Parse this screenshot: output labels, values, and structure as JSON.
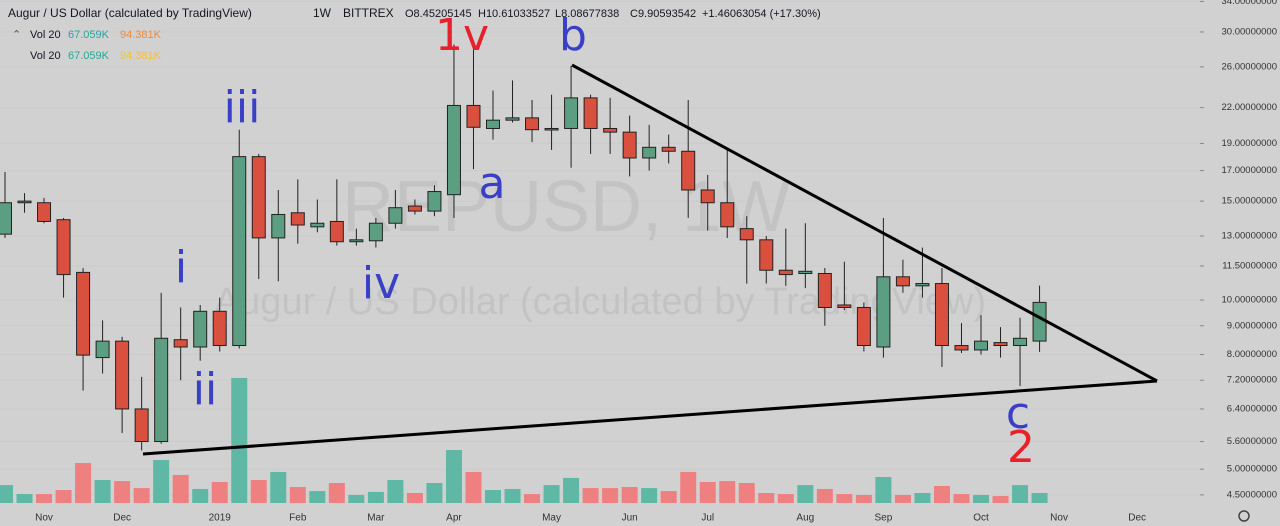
{
  "chart_data": {
    "type": "candlestick",
    "title": "Augur / US Dollar (calculated by TradingView)",
    "interval": "1W",
    "exchange": "BITTREX",
    "ohlc_labels": [
      "O8.45205145",
      "H10.61033527",
      "L8.08677838",
      "C9.90593542"
    ],
    "change": "+1.46063054 (+17.30%)",
    "watermark": "REPUSD, 1W",
    "volume_legend": [
      {
        "label": "Vol 20",
        "values": [
          "67.059K",
          "94.381K"
        ]
      },
      {
        "label": "Vol 20",
        "values": [
          "67.059K",
          "94.381K"
        ]
      }
    ],
    "annotations": [
      "1v",
      "a",
      "b",
      "iii",
      "i",
      "ii",
      "iv",
      "c",
      "2"
    ],
    "log_scale": true,
    "grid": true,
    "up_color": "#5b9e82",
    "down_color": "#d9503f",
    "volume_up_color": "#5fb8a5",
    "volume_down_color": "#ef8080",
    "categories": [
      null,
      null,
      "Nov",
      null,
      null,
      null,
      "Dec",
      null,
      null,
      null,
      null,
      "2019",
      null,
      null,
      null,
      "Feb",
      null,
      null,
      null,
      "Mar",
      null,
      null,
      null,
      "Apr",
      null,
      null,
      null,
      null,
      "May",
      null,
      null,
      null,
      "Jun",
      null,
      null,
      null,
      "Jul",
      null,
      null,
      null,
      null,
      "Aug",
      null,
      null,
      null,
      "Sep",
      null,
      null,
      null,
      null,
      "Oct",
      null,
      null,
      null,
      "Nov",
      null,
      null,
      null,
      "Dec",
      null,
      null
    ],
    "open": [
      13.1,
      14.9,
      14.9,
      13.9,
      11.2,
      7.9,
      8.45,
      6.4,
      5.6,
      8.5,
      8.25,
      9.55,
      8.3,
      18.0,
      12.9,
      14.3,
      13.5,
      13.8,
      12.7,
      12.75,
      13.7,
      14.7,
      14.4,
      15.4,
      22.2,
      20.2,
      20.9,
      21.1,
      20.1,
      20.2,
      22.9,
      20.2,
      19.9,
      17.9,
      18.7,
      18.4,
      15.7,
      14.9,
      13.4,
      12.8,
      11.3,
      11.15,
      11.15,
      9.8,
      9.7,
      8.25,
      11.0,
      10.6,
      10.7,
      8.3,
      8.15,
      8.4,
      8.3,
      8.45205145,
      null,
      null,
      null,
      null,
      null,
      null,
      null
    ],
    "high": [
      16.9,
      15.5,
      15.2,
      14.0,
      11.4,
      9.2,
      8.6,
      7.3,
      10.3,
      9.7,
      9.8,
      10.1,
      20.1,
      18.2,
      15.7,
      16.4,
      15.1,
      16.4,
      13.4,
      14.0,
      15.7,
      15.1,
      16.0,
      28.5,
      29.0,
      23.6,
      24.6,
      22.7,
      23.2,
      26.1,
      23.2,
      22.9,
      21.3,
      20.5,
      19.7,
      22.7,
      16.7,
      18.5,
      14.1,
      13.0,
      13.4,
      13.7,
      11.4,
      11.7,
      9.9,
      14.0,
      11.8,
      12.4,
      11.4,
      9.1,
      9.4,
      8.95,
      9.3,
      10.61033527,
      null,
      null,
      null,
      null,
      null,
      null,
      null
    ],
    "low": [
      12.9,
      14.3,
      13.7,
      10.1,
      6.9,
      7.4,
      5.8,
      5.4,
      5.55,
      7.2,
      7.8,
      8.1,
      8.2,
      10.9,
      10.8,
      12.6,
      13.2,
      12.5,
      12.5,
      12.4,
      13.4,
      14.2,
      14.1,
      14.0,
      17.1,
      19.3,
      20.7,
      19.1,
      18.5,
      17.2,
      18.2,
      18.2,
      16.6,
      17.0,
      17.5,
      14.0,
      13.3,
      12.9,
      10.7,
      10.7,
      10.6,
      10.5,
      9.0,
      9.6,
      8.1,
      7.9,
      10.3,
      10.1,
      7.6,
      8.05,
      8.0,
      7.9,
      7.03,
      8.08677838,
      null,
      null,
      null,
      null,
      null,
      null,
      null
    ],
    "close": [
      14.9,
      15.0,
      13.8,
      11.1,
      7.98,
      8.45,
      6.4,
      5.6,
      8.55,
      8.25,
      9.55,
      8.3,
      18.0,
      12.9,
      14.2,
      13.6,
      13.7,
      12.7,
      12.8,
      13.7,
      14.6,
      14.4,
      15.6,
      22.2,
      20.3,
      20.9,
      21.1,
      20.1,
      20.2,
      22.9,
      20.2,
      19.9,
      17.9,
      18.7,
      18.4,
      15.7,
      14.9,
      13.5,
      12.8,
      11.3,
      11.1,
      11.25,
      9.7,
      9.7,
      8.3,
      11.0,
      10.6,
      10.7,
      8.3,
      8.15,
      8.45,
      8.3,
      8.55,
      9.90593542,
      null,
      null,
      null,
      null,
      null,
      null,
      null
    ],
    "volume": [
      120,
      60,
      60,
      87,
      268,
      154,
      147,
      100,
      288,
      188,
      94,
      141,
      838,
      154,
      208,
      107,
      80,
      134,
      54,
      74,
      154,
      67,
      134,
      355,
      208,
      87,
      94,
      60,
      120,
      168,
      100,
      100,
      107,
      100,
      80,
      208,
      141,
      147,
      134,
      67,
      60,
      120,
      94,
      60,
      54,
      174,
      54,
      67,
      114,
      60,
      54,
      47,
      120,
      67.059,
      null,
      null,
      null,
      null,
      null,
      null,
      null
    ],
    "ylim": [
      4.23,
      34.2
    ],
    "yticks": [
      {
        "value": 34,
        "label": "34.00000000"
      },
      {
        "value": 30,
        "label": "30.00000000"
      },
      {
        "value": 26,
        "label": "26.00000000"
      },
      {
        "value": 22,
        "label": "22.00000000"
      },
      {
        "value": 19,
        "label": "19.00000000"
      },
      {
        "value": 17,
        "label": "17.00000000"
      },
      {
        "value": 15,
        "label": "15.00000000"
      },
      {
        "value": 13,
        "label": "13.00000000"
      },
      {
        "value": 11.5,
        "label": "11.50000000"
      },
      {
        "value": 10,
        "label": "10.00000000"
      },
      {
        "value": 9,
        "label": "9.00000000"
      },
      {
        "value": 8,
        "label": "8.00000000"
      },
      {
        "value": 7.2,
        "label": "7.20000000"
      },
      {
        "value": 6.4,
        "label": "6.40000000"
      },
      {
        "value": 5.6,
        "label": "5.60000000"
      },
      {
        "value": 5,
        "label": "5.00000000"
      },
      {
        "value": 4.5,
        "label": "4.50000000"
      }
    ]
  }
}
